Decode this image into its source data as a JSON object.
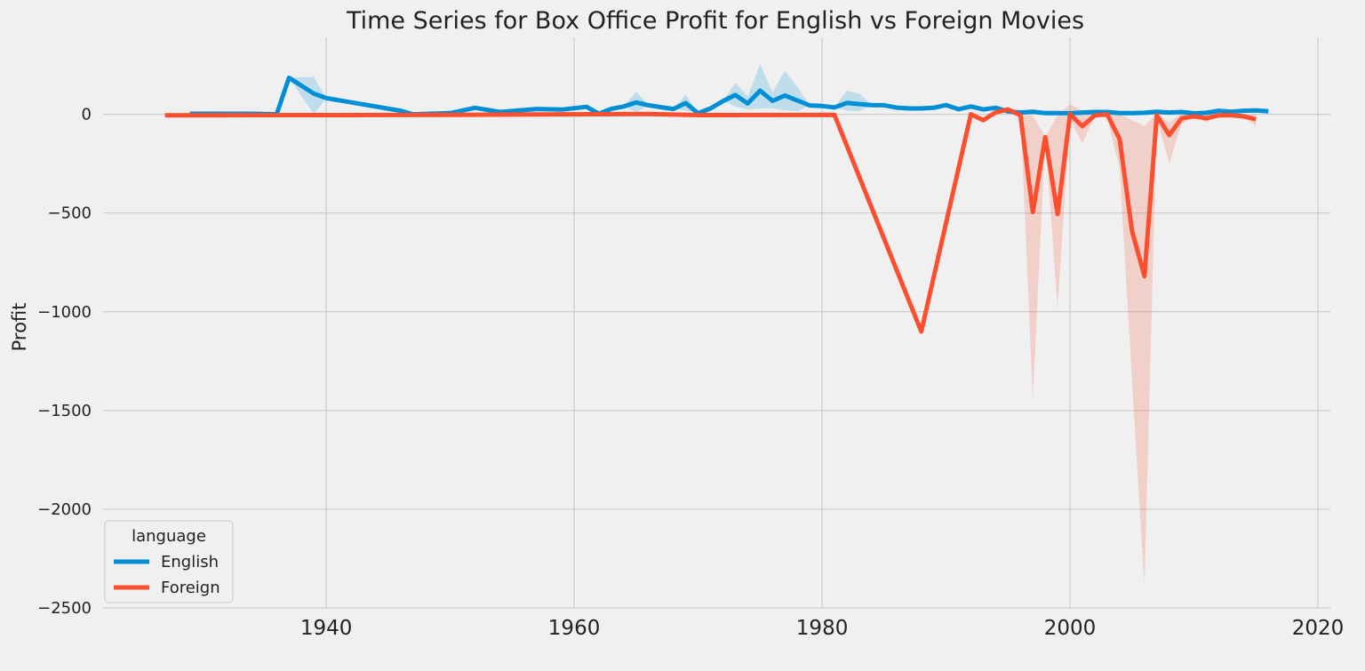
{
  "chart_data": {
    "type": "line",
    "title": "Time Series for Box Office Profit for English vs Foreign Movies",
    "xlabel": "",
    "ylabel": "Profit",
    "xlim": [
      1922,
      2021
    ],
    "ylim": [
      -2500,
      390
    ],
    "x_ticks": [
      1940,
      1960,
      1980,
      2000,
      2020
    ],
    "y_ticks": [
      0,
      -500,
      -1000,
      -1500,
      -2000,
      -2500
    ],
    "grid": true,
    "legend": {
      "title": "language",
      "placement": "lower-left"
    },
    "series": [
      {
        "name": "English",
        "color": "#008fd5",
        "x": [
          1929,
          1934,
          1936,
          1937,
          1939,
          1940,
          1946,
          1947,
          1950,
          1952,
          1954,
          1957,
          1959,
          1961,
          1962,
          1963,
          1964,
          1965,
          1966,
          1967,
          1968,
          1969,
          1970,
          1971,
          1972,
          1973,
          1974,
          1975,
          1976,
          1977,
          1978,
          1979,
          1980,
          1981,
          1982,
          1983,
          1984,
          1985,
          1986,
          1987,
          1988,
          1989,
          1990,
          1991,
          1992,
          1993,
          1994,
          1995,
          1996,
          1997,
          1998,
          1999,
          2000,
          2001,
          2002,
          2003,
          2004,
          2005,
          2006,
          2007,
          2008,
          2009,
          2010,
          2011,
          2012,
          2013,
          2014,
          2015,
          2016
        ],
        "y": [
          3,
          3,
          0,
          185,
          105,
          82,
          18,
          0,
          6,
          33,
          12,
          27,
          24,
          38,
          3,
          28,
          40,
          60,
          46,
          36,
          27,
          57,
          5,
          30,
          67,
          98,
          55,
          120,
          68,
          95,
          70,
          45,
          42,
          35,
          58,
          52,
          47,
          46,
          34,
          30,
          30,
          33,
          47,
          26,
          40,
          25,
          33,
          15,
          9,
          13,
          6,
          6,
          5,
          9,
          12,
          12,
          6,
          6,
          8,
          13,
          9,
          12,
          5,
          8,
          18,
          13,
          18,
          20,
          15
        ],
        "ci_x": [
          1939,
          1965,
          1969,
          1973,
          1974,
          1975,
          1976,
          1977,
          1978,
          1982,
          1983
        ],
        "ci_upper": [
          190,
          115,
          100,
          160,
          90,
          255,
          110,
          220,
          140,
          120,
          105
        ],
        "ci_lower": [
          0,
          10,
          20,
          40,
          25,
          30,
          30,
          20,
          15,
          20,
          15
        ]
      },
      {
        "name": "Foreign",
        "color": "#fc4f30",
        "x": [
          1927,
          1940,
          1950,
          1960,
          1966,
          1970,
          1981,
          1988,
          1992,
          1993,
          1994,
          1995,
          1996,
          1997,
          1998,
          1999,
          2000,
          2001,
          2002,
          2003,
          2004,
          2005,
          2006,
          2007,
          2008,
          2009,
          2010,
          2011,
          2012,
          2013,
          2014,
          2015
        ],
        "y": [
          -5,
          -4,
          -3,
          0,
          2,
          -4,
          -3,
          -1100,
          0,
          -30,
          10,
          25,
          -5,
          -495,
          -115,
          -505,
          0,
          -60,
          -5,
          0,
          -125,
          -590,
          -820,
          -5,
          -105,
          -20,
          -10,
          -20,
          -5,
          -5,
          -10,
          -25
        ],
        "ci_x": [
          1997,
          1999,
          2000,
          2001,
          2003,
          2004,
          2005,
          2006,
          2007,
          2008,
          2009,
          2011,
          2015
        ],
        "ci_upper": [
          -5,
          -5,
          50,
          20,
          15,
          0,
          -30,
          -60,
          5,
          -40,
          5,
          5,
          0
        ],
        "ci_lower": [
          -1440,
          -980,
          -20,
          -150,
          -20,
          -270,
          -1350,
          -2390,
          -20,
          -250,
          -50,
          -40,
          -60
        ]
      }
    ]
  }
}
